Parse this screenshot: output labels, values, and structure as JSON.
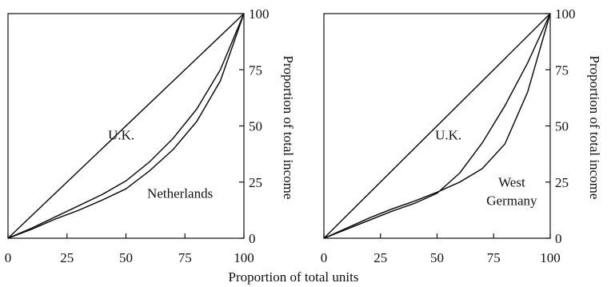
{
  "figure": {
    "xlabel": "Proportion of total units"
  },
  "chart_data": [
    {
      "type": "line",
      "xlim": [
        0,
        100
      ],
      "ylim": [
        0,
        100
      ],
      "xticks": [
        "0",
        "25",
        "50",
        "75",
        "100"
      ],
      "yticks": [
        "0",
        "25",
        "50",
        "75",
        "100"
      ],
      "ylabel": "Proportion of total income",
      "grid": false,
      "series": [
        {
          "name": "equality",
          "x": [
            0,
            100
          ],
          "y": [
            0,
            100
          ]
        },
        {
          "name": "U.K.",
          "x": [
            0,
            10,
            20,
            30,
            40,
            50,
            60,
            70,
            80,
            90,
            100
          ],
          "y": [
            0,
            4.5,
            9.5,
            14.5,
            19.5,
            25.5,
            34,
            44.5,
            57.5,
            75,
            100
          ]
        },
        {
          "name": "Netherlands",
          "x": [
            0,
            10,
            20,
            30,
            40,
            50,
            60,
            70,
            80,
            90,
            100
          ],
          "y": [
            0,
            4,
            8.5,
            12.5,
            17,
            22,
            30,
            39.5,
            52,
            70,
            100
          ]
        }
      ],
      "annotations": [
        {
          "lines": [
            "U.K."
          ],
          "x": 48,
          "y": 44,
          "anchor": "middle"
        },
        {
          "lines": [
            "Netherlands"
          ],
          "x": 59,
          "y": 18,
          "anchor": "start"
        }
      ]
    },
    {
      "type": "line",
      "xlim": [
        0,
        100
      ],
      "ylim": [
        0,
        100
      ],
      "xticks": [
        "0",
        "25",
        "50",
        "75",
        "100"
      ],
      "yticks": [
        "0",
        "25",
        "50",
        "75",
        "100"
      ],
      "ylabel": "Proportion of total income",
      "grid": false,
      "series": [
        {
          "name": "equality",
          "x": [
            0,
            100
          ],
          "y": [
            0,
            100
          ]
        },
        {
          "name": "U.K.",
          "x": [
            0,
            10,
            20,
            30,
            40,
            50,
            60,
            70,
            80,
            90,
            100
          ],
          "y": [
            0,
            4,
            8,
            12,
            15.5,
            20,
            29,
            42.5,
            59,
            78,
            100
          ]
        },
        {
          "name": "West Germany",
          "x": [
            0,
            10,
            20,
            30,
            40,
            50,
            60,
            70,
            80,
            90,
            100
          ],
          "y": [
            0,
            4.5,
            9,
            13,
            16.5,
            20.5,
            25,
            31,
            42,
            65,
            100
          ]
        }
      ],
      "annotations": [
        {
          "lines": [
            "U.K."
          ],
          "x": 55,
          "y": 44,
          "anchor": "middle"
        },
        {
          "lines": [
            "West",
            "Germany"
          ],
          "x": 83,
          "y": 23,
          "anchor": "middle"
        }
      ]
    }
  ]
}
